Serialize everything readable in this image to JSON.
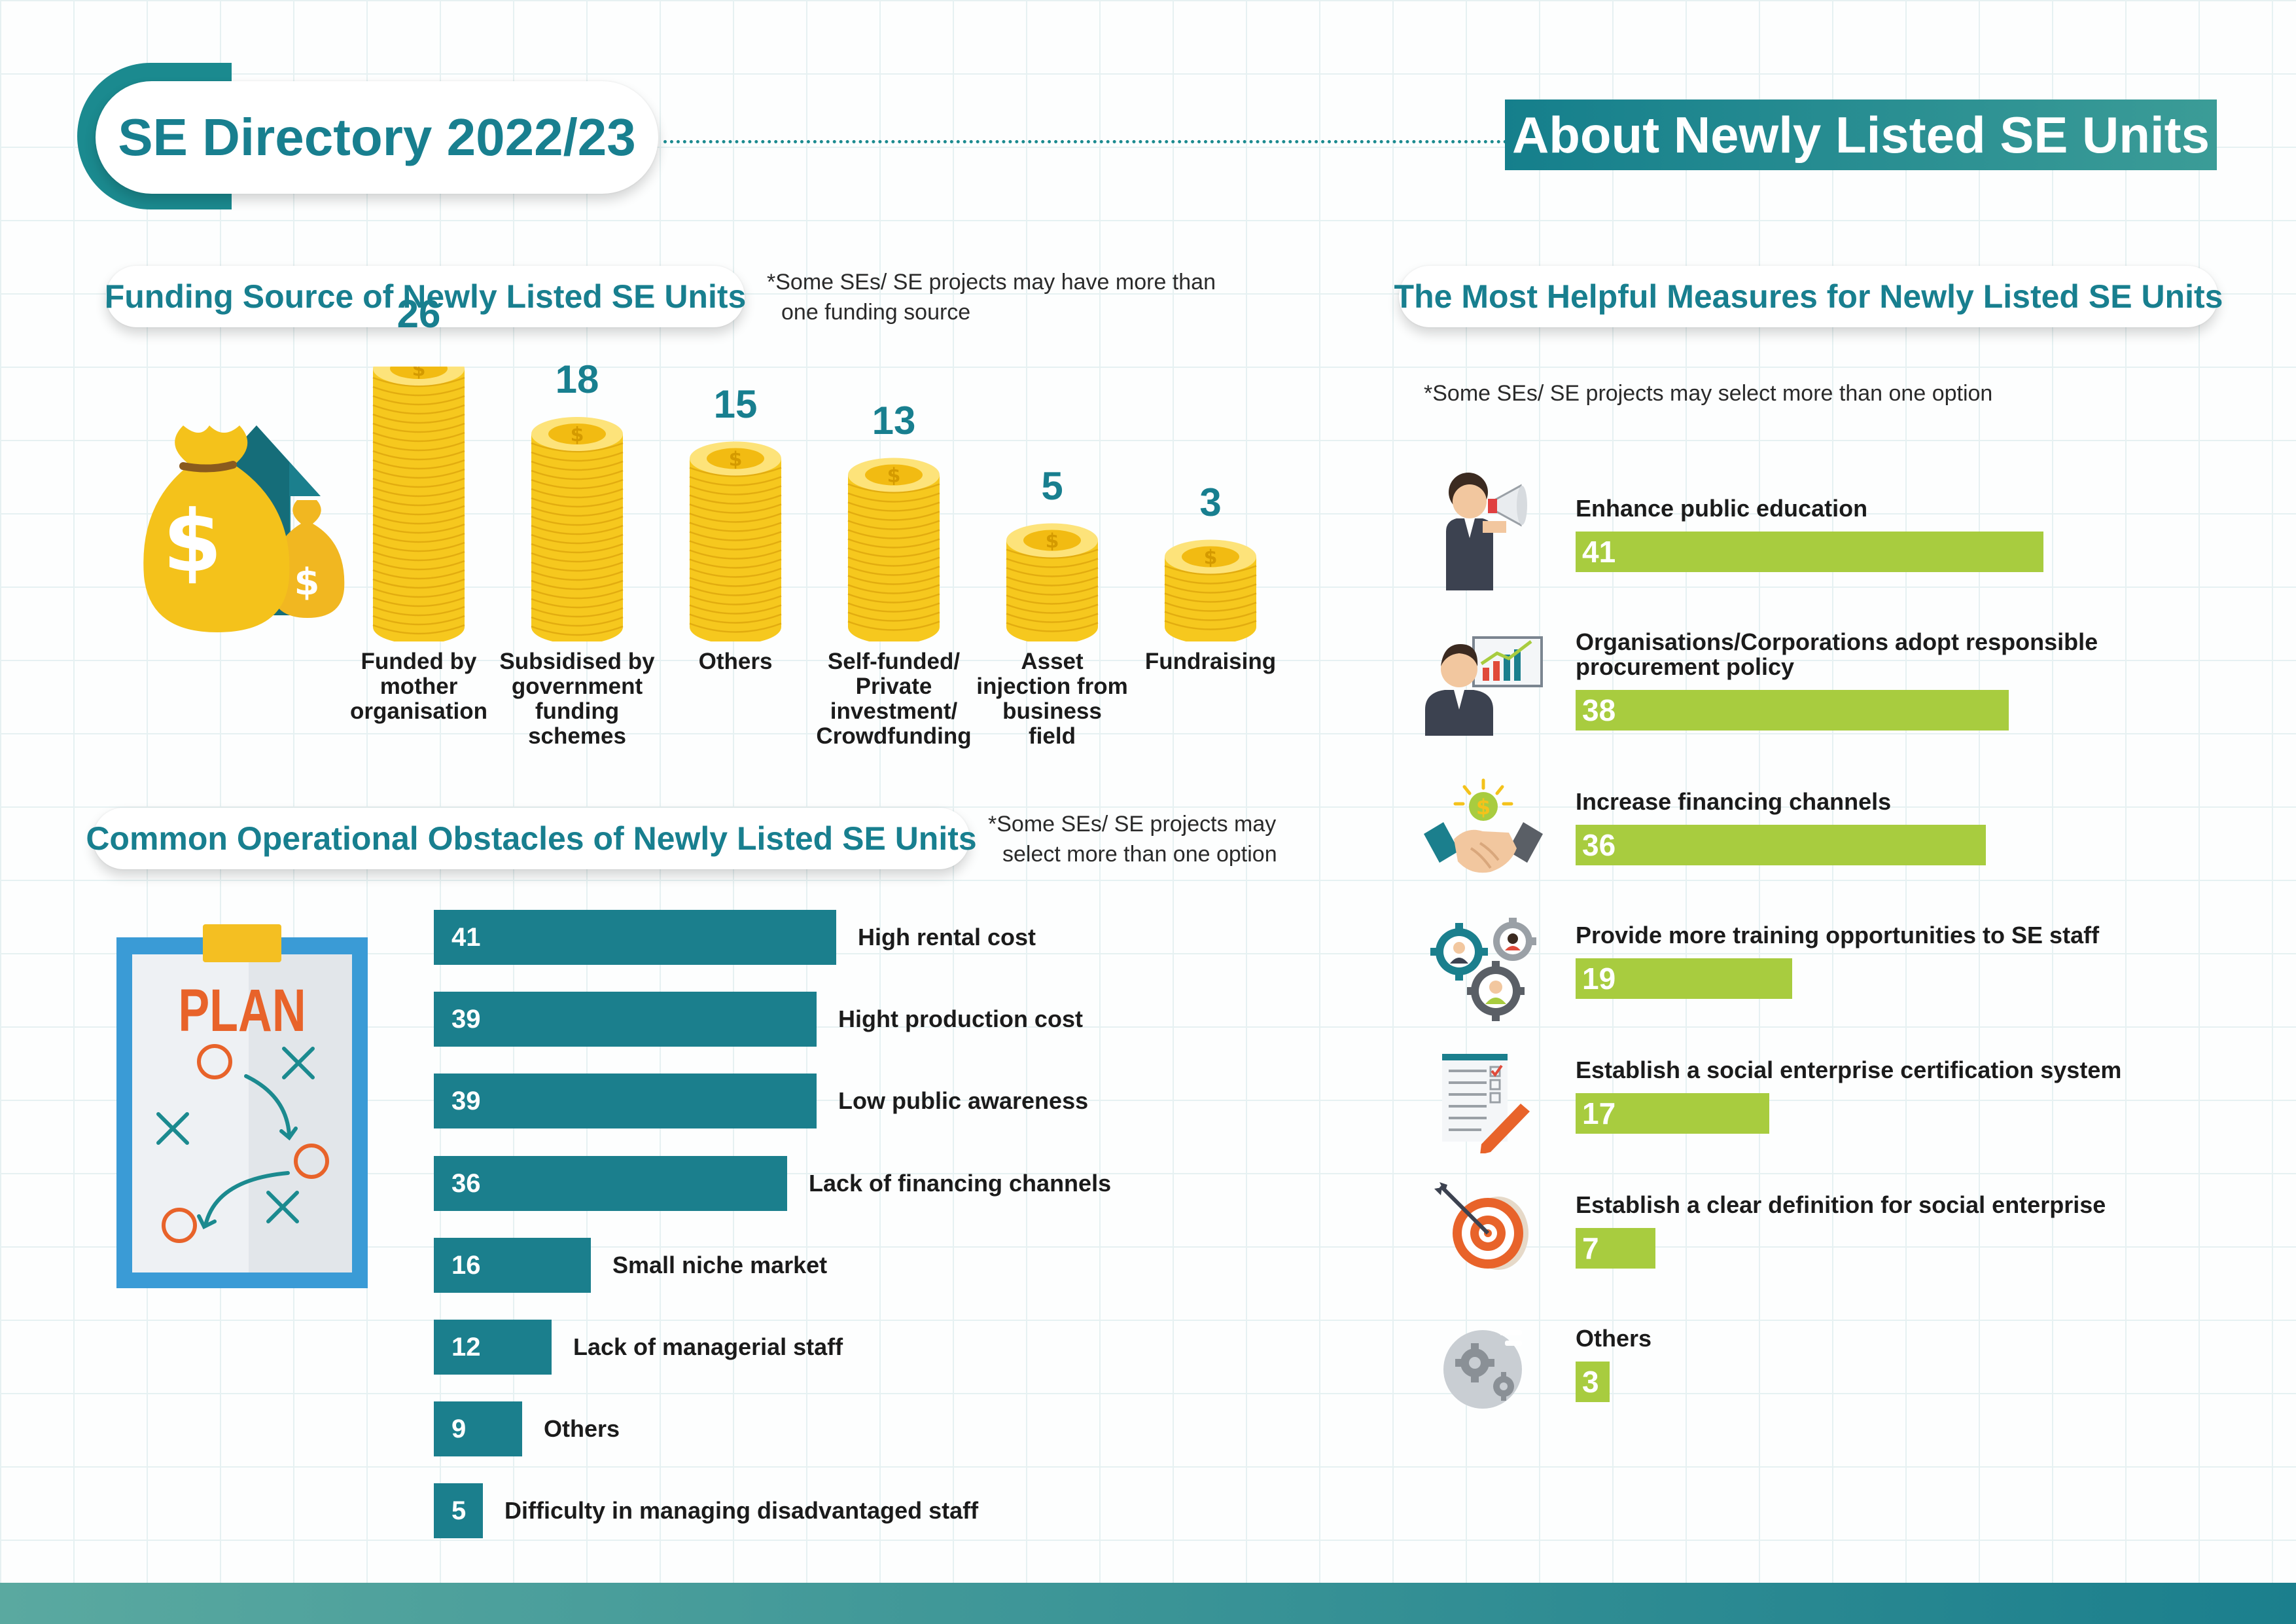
{
  "header": {
    "directory_title": "SE Directory 2022/23",
    "section_title": "About Newly Listed SE Units"
  },
  "colors": {
    "teal": "#1b7f8d",
    "green": "#a8cc3f",
    "gold": "#f4c21b"
  },
  "funding": {
    "title": "Funding Source of Newly Listed SE Units",
    "note_line1": "*Some SEs/ SE projects may have more than",
    "note_line2": "one funding source",
    "icon": "money-bag-arrow-icon"
  },
  "obstacles": {
    "title": "Common Operational Obstacles of Newly Listed SE Units",
    "note_line1": "*Some SEs/ SE projects may",
    "note_line2": "select more than one option",
    "icon": "plan-board-icon",
    "plan_label": "PLAN"
  },
  "measures": {
    "title": "The Most Helpful Measures for Newly Listed SE Units",
    "note": "*Some SEs/ SE projects may select more than one option"
  },
  "chart_data": [
    {
      "type": "bar",
      "title": "Funding Source of Newly Listed SE Units",
      "categories": [
        [
          "Funded by",
          "mother",
          "organisation"
        ],
        [
          "Subsidised by",
          "government",
          "funding",
          "schemes"
        ],
        [
          "Others"
        ],
        [
          "Self-funded/",
          "Private",
          "investment/",
          "Crowdfunding"
        ],
        [
          "Asset",
          "injection from",
          "business",
          "field"
        ],
        [
          "Fundraising"
        ]
      ],
      "values": [
        26,
        18,
        15,
        13,
        5,
        3
      ],
      "value_labels": [
        "26",
        "18",
        "15",
        "13",
        "5",
        "3"
      ]
    },
    {
      "type": "bar",
      "orientation": "horizontal",
      "title": "Common Operational Obstacles of Newly Listed SE Units",
      "categories": [
        "High rental cost",
        "Hight production cost",
        "Low public awareness",
        "Lack of financing channels",
        "Small niche market",
        "Lack of managerial staff",
        "Others",
        "Difficulty in managing disadvantaged staff"
      ],
      "values": [
        41,
        39,
        39,
        36,
        16,
        12,
        9,
        5
      ],
      "value_labels": [
        "41",
        "39",
        "39",
        "36",
        "16",
        "12",
        "9",
        "5"
      ]
    },
    {
      "type": "bar",
      "orientation": "horizontal",
      "title": "The Most Helpful Measures for Newly Listed SE Units",
      "categories": [
        [
          "Enhance public education"
        ],
        [
          "Organisations/Corporations adopt responsible",
          "procurement policy"
        ],
        [
          "Increase financing channels"
        ],
        [
          "Provide more training opportunities to SE staff"
        ],
        [
          "Establish a social enterprise certification system"
        ],
        [
          "Establish a clear definition for social enterprise"
        ],
        [
          "Others"
        ]
      ],
      "values": [
        41,
        38,
        36,
        19,
        17,
        7,
        3
      ],
      "value_labels": [
        "41",
        "38",
        "36",
        "19",
        "17",
        "7",
        "3"
      ],
      "icons": [
        "megaphone-icon",
        "presentation-icon",
        "handshake-icon",
        "team-gears-icon",
        "checklist-icon",
        "target-icon",
        "gears-icon"
      ]
    }
  ]
}
